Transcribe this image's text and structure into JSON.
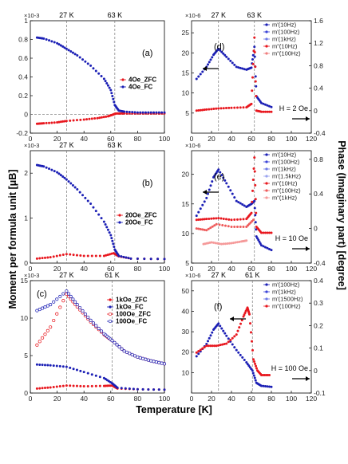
{
  "figure": {
    "ylabel_left": "Moment per formula unit [μB]",
    "ylabel_right": "Phase (Imaginary part) [degree]",
    "xlabel": "Temperature [K]"
  },
  "chart_data": [
    {
      "id": "a",
      "type": "scatter",
      "panel_label": "(a)",
      "x_ticks": [
        0,
        20,
        40,
        60,
        80,
        100
      ],
      "xlim": [
        0,
        100
      ],
      "y_ticks": [
        -0.2,
        0,
        0.2,
        0.4,
        0.6,
        0.8,
        1.0
      ],
      "ylim": [
        -0.2,
        1.0
      ],
      "multiplier": "×10-3",
      "markers": [
        {
          "x": 27,
          "label": "27 K"
        },
        {
          "x": 63,
          "label": "63 K"
        }
      ],
      "zero_line": true,
      "series": [
        {
          "name": "4Oe_ZFC",
          "color": "#e8171e",
          "x": [
            5,
            10,
            20,
            27,
            40,
            50,
            58,
            62,
            64,
            70,
            80,
            90,
            100
          ],
          "y": [
            -0.1,
            -0.095,
            -0.085,
            -0.07,
            -0.055,
            -0.04,
            -0.02,
            0.0,
            0.01,
            0.01,
            0.01,
            0.01,
            0.01
          ]
        },
        {
          "name": "4Oe_FC",
          "color": "#1b1fb5",
          "x": [
            5,
            10,
            20,
            27,
            35,
            45,
            55,
            60,
            63,
            66,
            70,
            80,
            90,
            100
          ],
          "y": [
            0.82,
            0.81,
            0.76,
            0.7,
            0.63,
            0.52,
            0.38,
            0.26,
            0.1,
            0.04,
            0.03,
            0.02,
            0.02,
            0.02
          ]
        }
      ]
    },
    {
      "id": "b",
      "type": "scatter",
      "panel_label": "(b)",
      "x_ticks": [
        0,
        20,
        40,
        60,
        80,
        100
      ],
      "xlim": [
        0,
        100
      ],
      "y_ticks": [
        0,
        1,
        2
      ],
      "ylim": [
        0,
        2.5
      ],
      "multiplier": "×10-3",
      "markers": [
        {
          "x": 27,
          "label": "27 K"
        },
        {
          "x": 63,
          "label": "63 K"
        }
      ],
      "series": [
        {
          "name": "20Oe_ZFC",
          "color": "#e8171e",
          "x": [
            5,
            15,
            27,
            40,
            55,
            62,
            66,
            75,
            100
          ],
          "y": [
            0.1,
            0.13,
            0.2,
            0.16,
            0.16,
            0.22,
            0.15,
            0.1,
            0.09
          ]
        },
        {
          "name": "20Oe_FC",
          "color": "#1b1fb5",
          "x": [
            5,
            10,
            20,
            27,
            35,
            45,
            55,
            60,
            63,
            66,
            75,
            100
          ],
          "y": [
            2.18,
            2.15,
            2.02,
            1.86,
            1.64,
            1.32,
            0.92,
            0.62,
            0.3,
            0.16,
            0.1,
            0.09
          ]
        }
      ]
    },
    {
      "id": "c",
      "type": "scatter",
      "panel_label": "(c)",
      "x_ticks": [
        0,
        20,
        40,
        60,
        80,
        100
      ],
      "xlim": [
        0,
        100
      ],
      "y_ticks": [
        0,
        5,
        10,
        15
      ],
      "ylim": [
        0,
        15
      ],
      "multiplier": "×10-3",
      "markers": [
        {
          "x": 27,
          "label": "27 K"
        },
        {
          "x": 61,
          "label": "61 K"
        }
      ],
      "series": [
        {
          "name": "1kOe_ZFC",
          "color": "#e8171e",
          "open": false,
          "x": [
            5,
            15,
            27,
            40,
            55,
            61,
            65,
            80,
            100
          ],
          "y": [
            0.6,
            0.75,
            1.0,
            0.9,
            0.95,
            1.0,
            0.6,
            0.5,
            0.45
          ]
        },
        {
          "name": "1kOe_FC",
          "color": "#1b1fb5",
          "open": false,
          "x": [
            5,
            15,
            27,
            40,
            55,
            61,
            65,
            80,
            100
          ],
          "y": [
            3.8,
            3.7,
            3.5,
            2.8,
            2.0,
            1.3,
            0.7,
            0.5,
            0.45
          ]
        },
        {
          "name": "100Oe_ZFC",
          "color": "#e8171e",
          "open": true,
          "x": [
            5,
            15,
            27,
            35,
            45,
            55,
            61,
            70,
            80,
            90,
            100
          ],
          "y": [
            6.4,
            8.8,
            13.2,
            11.5,
            9.5,
            7.8,
            7.0,
            5.6,
            4.8,
            4.3,
            3.9
          ]
        },
        {
          "name": "100Oe_FC",
          "color": "#1b1fb5",
          "open": true,
          "x": [
            5,
            15,
            27,
            35,
            45,
            55,
            61,
            70,
            80,
            90,
            100
          ],
          "y": [
            11.0,
            11.8,
            13.6,
            11.8,
            9.7,
            7.9,
            7.0,
            5.6,
            4.8,
            4.3,
            3.9
          ]
        }
      ]
    },
    {
      "id": "d",
      "type": "scatter",
      "panel_label": "(d)",
      "x_ticks": [
        0,
        20,
        40,
        60,
        80,
        100,
        120
      ],
      "xlim": [
        0,
        120
      ],
      "y_ticks": [
        5,
        10,
        15,
        20,
        25
      ],
      "ylim": [
        0,
        28
      ],
      "y2_ticks": [
        -0.4,
        0,
        0.4,
        0.8,
        1.2,
        1.6
      ],
      "y2lim": [
        -0.4,
        1.6
      ],
      "multiplier": "×10-6",
      "markers": [
        {
          "x": 27,
          "label": "27 K"
        },
        {
          "x": 63,
          "label": "63 K"
        }
      ],
      "field_label": "H = 2 Oe",
      "series": [
        {
          "name": "m'(10Hz)",
          "color": "#1b1fb5",
          "axis": "left",
          "x": [
            5,
            15,
            22,
            27,
            35,
            45,
            55,
            60,
            63,
            65,
            70,
            80
          ],
          "y": [
            13.5,
            16.5,
            19.5,
            21.0,
            19.0,
            16.5,
            15.8,
            16.3,
            21.5,
            9.2,
            7.5,
            6.5
          ]
        },
        {
          "name": "m'(100Hz)",
          "color": "#3b44d8",
          "axis": "left",
          "x": [],
          "y": []
        },
        {
          "name": "m'(1kHz)",
          "color": "#6b77e6",
          "axis": "left",
          "x": [],
          "y": []
        },
        {
          "name": "m\"(10Hz)",
          "color": "#e8171e",
          "axis": "right",
          "x": [
            5,
            15,
            27,
            40,
            55,
            60,
            63,
            65,
            70,
            80
          ],
          "y": [
            0.0,
            0.02,
            0.04,
            0.05,
            0.06,
            0.12,
            1.3,
            0.0,
            -0.02,
            -0.02
          ]
        },
        {
          "name": "m\"(100Hz)",
          "color": "#f07d7d",
          "axis": "right",
          "x": [],
          "y": []
        }
      ]
    },
    {
      "id": "e",
      "type": "scatter",
      "panel_label": "(e)",
      "x_ticks": [
        0,
        20,
        40,
        60,
        80,
        100,
        120
      ],
      "xlim": [
        0,
        120
      ],
      "y_ticks": [
        5,
        10,
        15,
        20
      ],
      "ylim": [
        5,
        24
      ],
      "y2_ticks": [
        -0.4,
        0,
        0.4,
        0.8
      ],
      "y2lim": [
        -0.4,
        0.9
      ],
      "multiplier": "×10-6",
      "markers": [
        {
          "x": 27,
          "label": ""
        },
        {
          "x": 63,
          "label": ""
        }
      ],
      "field_label": "H = 10 Oe",
      "series": [
        {
          "name": "m'(10Hz)",
          "color": "#1b1fb5",
          "axis": "left",
          "x": [
            5,
            15,
            22,
            27,
            35,
            45,
            55,
            60,
            63,
            65,
            70,
            80
          ],
          "y": [
            13.0,
            16.0,
            19.5,
            20.8,
            18.5,
            15.5,
            14.5,
            15.0,
            15.5,
            9.5,
            8.0,
            7.2
          ]
        },
        {
          "name": "m'(100Hz)",
          "color": "#3b44d8",
          "axis": "left",
          "x": [],
          "y": []
        },
        {
          "name": "m'(1kHz)",
          "color": "#6b77e6",
          "axis": "left",
          "x": [],
          "y": []
        },
        {
          "name": "m'(1.5kHz)",
          "color": "#9aa3f0",
          "axis": "left",
          "x": [],
          "y": []
        },
        {
          "name": "m\"(10Hz)",
          "color": "#e8171e",
          "axis": "right",
          "x": [
            5,
            15,
            27,
            40,
            55,
            60,
            63,
            65,
            70,
            80
          ],
          "y": [
            0.1,
            0.11,
            0.12,
            0.1,
            0.11,
            0.18,
            0.82,
            0.02,
            -0.05,
            -0.05
          ]
        },
        {
          "name": "m\"(100Hz)",
          "color": "#ee5a5a",
          "axis": "right",
          "x": [
            5,
            15,
            25,
            40,
            55,
            62
          ],
          "y": [
            0.0,
            -0.02,
            0.05,
            0.02,
            0.02,
            0.1
          ]
        },
        {
          "name": "m\"(1kHz)",
          "color": "#f59a9a",
          "axis": "right",
          "x": [
            12,
            20,
            30,
            40,
            50,
            55
          ],
          "y": [
            -0.18,
            -0.16,
            -0.18,
            -0.17,
            -0.15,
            -0.14
          ]
        }
      ]
    },
    {
      "id": "f",
      "type": "scatter",
      "panel_label": "(f)",
      "x_ticks": [
        0,
        20,
        40,
        60,
        80,
        100,
        120
      ],
      "xlim": [
        0,
        120
      ],
      "y_ticks": [
        10,
        20,
        30,
        40,
        50
      ],
      "ylim": [
        0,
        55
      ],
      "y2_ticks": [
        -0.1,
        0,
        0.1,
        0.2,
        0.3,
        0.4
      ],
      "y2lim": [
        -0.1,
        0.4
      ],
      "multiplier": "×10-6",
      "markers": [
        {
          "x": 27,
          "label": "27 K"
        },
        {
          "x": 61,
          "label": "61 K"
        }
      ],
      "field_label": "H = 100 Oe",
      "series": [
        {
          "name": "m'(100Hz)",
          "color": "#1b1fb5",
          "axis": "left",
          "x": [
            5,
            15,
            22,
            27,
            35,
            45,
            55,
            61,
            65,
            70,
            80
          ],
          "y": [
            18.0,
            24.0,
            31.0,
            34.0,
            28.0,
            21.0,
            15.0,
            11.0,
            5.0,
            3.5,
            3.0
          ]
        },
        {
          "name": "m'(1kHz)",
          "color": "#3b44d8",
          "axis": "left",
          "x": [],
          "y": []
        },
        {
          "name": "m'(1500Hz)",
          "color": "#6b77e6",
          "axis": "left",
          "x": [],
          "y": []
        },
        {
          "name": "m\"(100Hz)",
          "color": "#e8171e",
          "axis": "right",
          "x": [
            5,
            15,
            25,
            35,
            45,
            52,
            56,
            58,
            62,
            66,
            70,
            78
          ],
          "y": [
            0.08,
            0.11,
            0.11,
            0.12,
            0.16,
            0.24,
            0.28,
            0.25,
            0.05,
            0.0,
            -0.02,
            -0.02
          ]
        }
      ]
    }
  ]
}
